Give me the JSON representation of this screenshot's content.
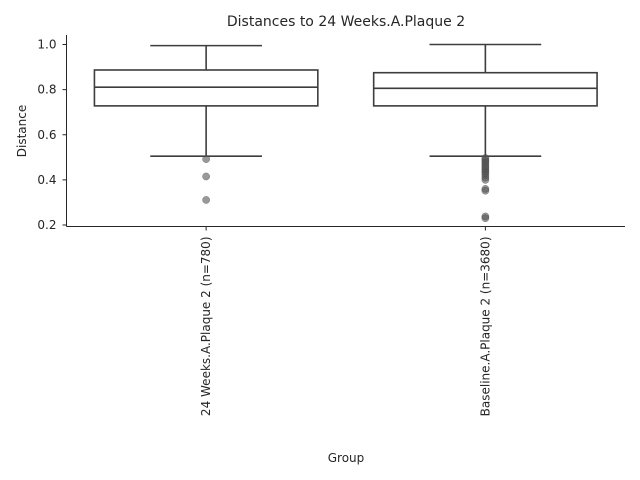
{
  "chart_data": {
    "type": "box",
    "title": "Distances to 24 Weeks.A.Plaque 2",
    "xlabel": "Group",
    "ylabel": "Distance",
    "ylim": [
      0.2,
      1.04
    ],
    "yticks": [
      0.2,
      0.4,
      0.6,
      0.8,
      1.0
    ],
    "ytick_labels": [
      "0.2",
      "0.4",
      "0.6",
      "0.8",
      "1.0"
    ],
    "grid": false,
    "colors": {
      "box_line": "#3d3d3d",
      "outlier": "#555555",
      "axis": "#262626"
    },
    "categories": [
      "24 Weeks.A.Plaque 2 (n=780)",
      "Baseline.A.Plaque 2 (n=3680)"
    ],
    "boxes": [
      {
        "category": "24 Weeks.A.Plaque 2 (n=780)",
        "whisker_low": 0.505,
        "q1": 0.728,
        "median": 0.811,
        "q3": 0.887,
        "whisker_high": 0.995,
        "outliers": [
          0.492,
          0.415,
          0.311
        ]
      },
      {
        "category": "Baseline.A.Plaque 2 (n=3680)",
        "whisker_low": 0.505,
        "q1": 0.728,
        "median": 0.806,
        "q3": 0.875,
        "whisker_high": 1.0,
        "outliers": [
          0.497,
          0.49,
          0.483,
          0.476,
          0.468,
          0.46,
          0.452,
          0.445,
          0.437,
          0.43,
          0.42,
          0.41,
          0.4,
          0.36,
          0.352,
          0.238,
          0.23
        ]
      }
    ]
  }
}
